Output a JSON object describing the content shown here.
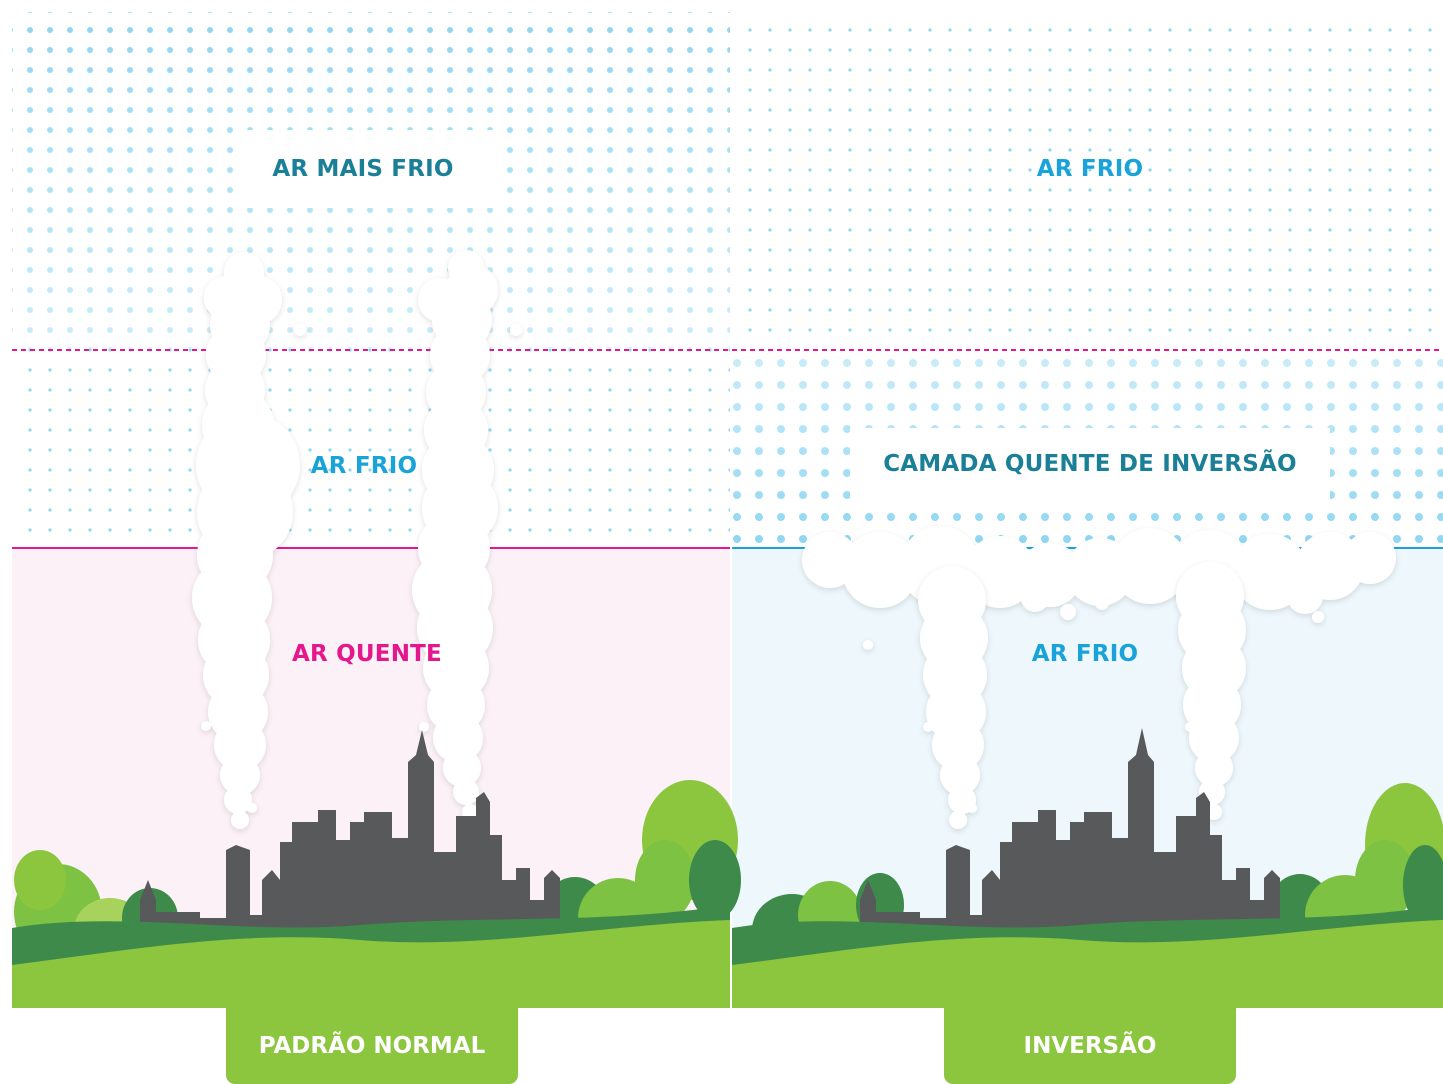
{
  "diagram": {
    "panels": [
      {
        "id": "normal",
        "upper_label": "AR MAIS FRIO",
        "middle_label": "AR FRIO",
        "lower_label": "AR QUENTE",
        "caption": "PADRÃO NORMAL"
      },
      {
        "id": "inversion",
        "upper_label": "AR FRIO",
        "middle_label": "CAMADA QUENTE DE INVERSÃO",
        "lower_label": "AR FRIO",
        "caption": "INVERSÃO"
      }
    ]
  },
  "colors": {
    "dot_blue": "#8fd6f2",
    "warm_magenta": "#e5178d",
    "cool_blue": "#1aa3d8",
    "label_teal": "#1b7f98",
    "warm_fill": "#fbf1f7",
    "cool_fill": "#edf7fc",
    "grass_green": "#8cc63f",
    "dark_green": "#3d8a4a",
    "tree_green": "#7dc242",
    "city_gray": "#58595b",
    "smoke_white": "#ffffff"
  }
}
